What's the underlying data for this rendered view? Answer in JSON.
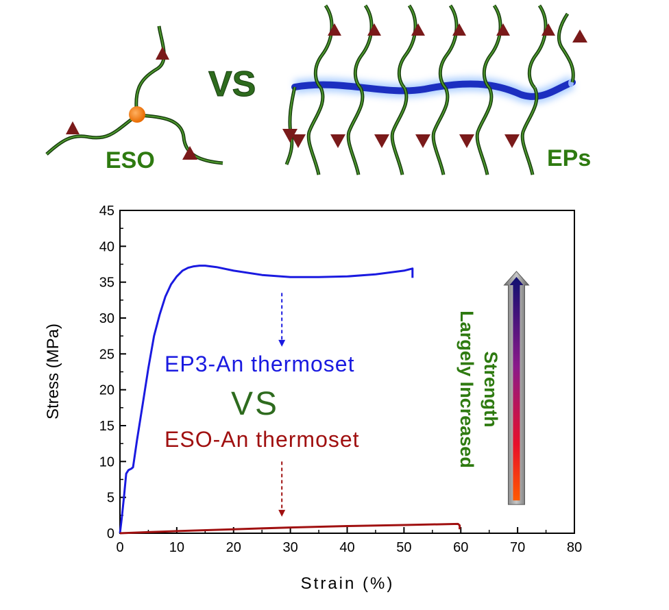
{
  "schematic": {
    "left_label": "ESO",
    "vs_label": "VS",
    "right_label": "EPs",
    "chain_color": "#2e6b1e",
    "triangle_color": "#7a1a1a",
    "core_color": "#f07a10",
    "backbone_color": "#1c2fc0"
  },
  "chart_data": {
    "type": "line",
    "xlabel": "Strain (%)",
    "ylabel": "Stress (MPa)",
    "xlim": [
      0,
      80
    ],
    "ylim": [
      0,
      45
    ],
    "xticks": [
      0,
      10,
      20,
      30,
      40,
      50,
      60,
      70,
      80
    ],
    "yticks": [
      0,
      5,
      10,
      15,
      20,
      25,
      30,
      35,
      40,
      45
    ],
    "grid": false,
    "series": [
      {
        "name": "EP3-An thermoset",
        "color": "#1a1ae0",
        "points": [
          [
            0,
            0
          ],
          [
            0.3,
            2
          ],
          [
            0.7,
            5
          ],
          [
            1.1,
            8.3
          ],
          [
            1.5,
            8.8
          ],
          [
            2.0,
            9.0
          ],
          [
            2.3,
            9.2
          ],
          [
            3,
            13
          ],
          [
            4,
            18
          ],
          [
            5,
            23
          ],
          [
            6,
            27.5
          ],
          [
            7,
            30.5
          ],
          [
            8,
            33
          ],
          [
            9,
            34.7
          ],
          [
            10,
            35.8
          ],
          [
            11,
            36.6
          ],
          [
            12,
            37.0
          ],
          [
            13,
            37.2
          ],
          [
            14,
            37.3
          ],
          [
            15,
            37.3
          ],
          [
            17,
            37.1
          ],
          [
            20,
            36.6
          ],
          [
            25,
            36.0
          ],
          [
            30,
            35.7
          ],
          [
            35,
            35.7
          ],
          [
            40,
            35.8
          ],
          [
            45,
            36.1
          ],
          [
            50,
            36.6
          ],
          [
            51.5,
            36.9
          ],
          [
            51.5,
            35.6
          ]
        ]
      },
      {
        "name": "ESO-An thermoset",
        "color": "#a01010",
        "points": [
          [
            0,
            0
          ],
          [
            5,
            0.15
          ],
          [
            10,
            0.3
          ],
          [
            20,
            0.55
          ],
          [
            30,
            0.8
          ],
          [
            40,
            1.0
          ],
          [
            50,
            1.15
          ],
          [
            59.5,
            1.3
          ],
          [
            59.8,
            1.1
          ],
          [
            59.8,
            0.55
          ]
        ]
      }
    ],
    "annotations": {
      "vs_text": "VS",
      "vs_color": "#2e6b1e",
      "side_text_line1": "Strength",
      "side_text_line2": "Largely Increased",
      "side_text_color": "#2e7a10",
      "blue_arrow": {
        "x": 28.5,
        "y_from": 33.5,
        "y_to": 26
      },
      "red_arrow": {
        "x": 28.5,
        "y_from": 10,
        "y_to": 2.3
      },
      "big_arrow": {
        "x": 69.8,
        "y_from": 4.0,
        "y_to": 36.5
      }
    }
  }
}
